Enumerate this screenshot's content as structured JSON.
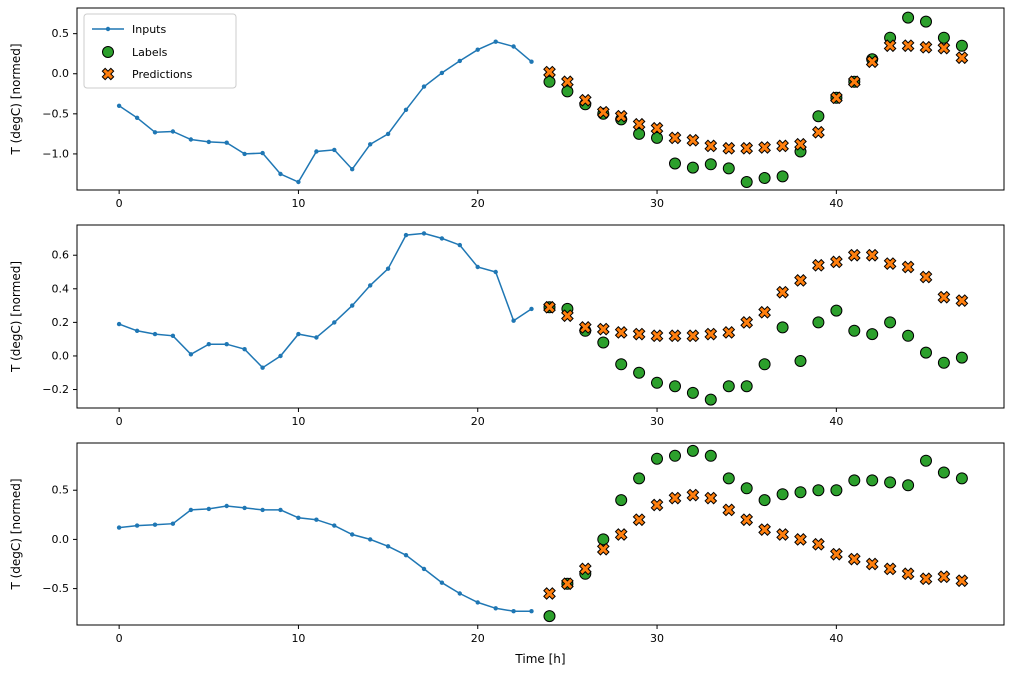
{
  "figure": {
    "background": "#ffffff"
  },
  "legend": {
    "position": "upper-left-subplot-1",
    "items": [
      {
        "key": "inputs",
        "label": "Inputs"
      },
      {
        "key": "labels",
        "label": "Labels"
      },
      {
        "key": "predictions",
        "label": "Predictions"
      }
    ]
  },
  "colors": {
    "inputs": "#1f77b4",
    "labels": "#2ca02c",
    "predictions": "#ff7f0e",
    "marker_edge": "#000000",
    "axis": "#000000",
    "legend_border": "#cccccc"
  },
  "chart_data": [
    {
      "type": "line",
      "title": "",
      "xlabel": "",
      "ylabel": "T (degC) [normed]",
      "xlim": [
        -2.35,
        49.35
      ],
      "ylim": [
        -1.45,
        0.82
      ],
      "grid": false,
      "xticks": [
        0,
        10,
        20,
        30,
        40
      ],
      "xtick_labels": [
        "0",
        "10",
        "20",
        "30",
        "40"
      ],
      "yticks": [
        0.5,
        0.0,
        -0.5,
        -1.0
      ],
      "ytick_labels": [
        "0.5",
        "0.0",
        "−0.5",
        "−1.0"
      ],
      "series": [
        {
          "name": "Inputs",
          "key": "inputs",
          "style": "line-marker",
          "x": [
            0,
            1,
            2,
            3,
            4,
            5,
            6,
            7,
            8,
            9,
            10,
            11,
            12,
            13,
            14,
            15,
            16,
            17,
            18,
            19,
            20,
            21,
            22,
            23
          ],
          "y": [
            -0.4,
            -0.55,
            -0.73,
            -0.72,
            -0.82,
            -0.85,
            -0.86,
            -1.0,
            -0.99,
            -1.25,
            -1.35,
            -0.97,
            -0.95,
            -1.19,
            -0.88,
            -0.75,
            -0.45,
            -0.16,
            0.01,
            0.16,
            0.3,
            0.4,
            0.34,
            0.15
          ]
        },
        {
          "name": "Labels",
          "key": "labels",
          "style": "scatter-circle",
          "x": [
            24,
            25,
            26,
            27,
            28,
            29,
            30,
            31,
            32,
            33,
            34,
            35,
            36,
            37,
            38,
            39,
            40,
            41,
            42,
            43,
            44,
            45,
            46,
            47
          ],
          "y": [
            -0.1,
            -0.22,
            -0.38,
            -0.5,
            -0.57,
            -0.75,
            -0.8,
            -1.12,
            -1.17,
            -1.13,
            -1.18,
            -1.35,
            -1.3,
            -1.28,
            -0.97,
            -0.53,
            -0.3,
            -0.1,
            0.18,
            0.45,
            0.7,
            0.65,
            0.45,
            0.35
          ]
        },
        {
          "name": "Predictions",
          "key": "predictions",
          "style": "scatter-x",
          "x": [
            24,
            25,
            26,
            27,
            28,
            29,
            30,
            31,
            32,
            33,
            34,
            35,
            36,
            37,
            38,
            39,
            40,
            41,
            42,
            43,
            44,
            45,
            46,
            47
          ],
          "y": [
            0.02,
            -0.1,
            -0.33,
            -0.48,
            -0.53,
            -0.63,
            -0.68,
            -0.8,
            -0.83,
            -0.9,
            -0.93,
            -0.93,
            -0.92,
            -0.9,
            -0.88,
            -0.73,
            -0.3,
            -0.1,
            0.15,
            0.35,
            0.35,
            0.33,
            0.32,
            0.2
          ]
        }
      ]
    },
    {
      "type": "line",
      "title": "",
      "xlabel": "",
      "ylabel": "T (degC) [normed]",
      "xlim": [
        -2.35,
        49.35
      ],
      "ylim": [
        -0.31,
        0.78
      ],
      "grid": false,
      "xticks": [
        0,
        10,
        20,
        30,
        40
      ],
      "xtick_labels": [
        "0",
        "10",
        "20",
        "30",
        "40"
      ],
      "yticks": [
        0.6,
        0.4,
        0.2,
        0.0,
        -0.2
      ],
      "ytick_labels": [
        "0.6",
        "0.4",
        "0.2",
        "0.0",
        "−0.2"
      ],
      "series": [
        {
          "name": "Inputs",
          "key": "inputs",
          "style": "line-marker",
          "x": [
            0,
            1,
            2,
            3,
            4,
            5,
            6,
            7,
            8,
            9,
            10,
            11,
            12,
            13,
            14,
            15,
            16,
            17,
            18,
            19,
            20,
            21,
            22,
            23
          ],
          "y": [
            0.19,
            0.15,
            0.13,
            0.12,
            0.01,
            0.07,
            0.07,
            0.04,
            -0.07,
            0.0,
            0.13,
            0.11,
            0.2,
            0.3,
            0.42,
            0.52,
            0.72,
            0.73,
            0.7,
            0.66,
            0.53,
            0.5,
            0.21,
            0.28
          ]
        },
        {
          "name": "Labels",
          "key": "labels",
          "style": "scatter-circle",
          "x": [
            24,
            25,
            26,
            27,
            28,
            29,
            30,
            31,
            32,
            33,
            34,
            35,
            36,
            37,
            38,
            39,
            40,
            41,
            42,
            43,
            44,
            45,
            46,
            47
          ],
          "y": [
            0.29,
            0.28,
            0.15,
            0.08,
            -0.05,
            -0.1,
            -0.16,
            -0.18,
            -0.22,
            -0.26,
            -0.18,
            -0.18,
            -0.05,
            0.17,
            -0.03,
            0.2,
            0.27,
            0.15,
            0.13,
            0.2,
            0.12,
            0.02,
            -0.04,
            -0.01
          ]
        },
        {
          "name": "Predictions",
          "key": "predictions",
          "style": "scatter-x",
          "x": [
            24,
            25,
            26,
            27,
            28,
            29,
            30,
            31,
            32,
            33,
            34,
            35,
            36,
            37,
            38,
            39,
            40,
            41,
            42,
            43,
            44,
            45,
            46,
            47
          ],
          "y": [
            0.29,
            0.24,
            0.17,
            0.16,
            0.14,
            0.13,
            0.12,
            0.12,
            0.12,
            0.13,
            0.14,
            0.2,
            0.26,
            0.38,
            0.45,
            0.54,
            0.56,
            0.6,
            0.6,
            0.55,
            0.53,
            0.47,
            0.35,
            0.33
          ]
        }
      ]
    },
    {
      "type": "line",
      "title": "",
      "xlabel": "Time [h]",
      "ylabel": "T (degC) [normed]",
      "xlim": [
        -2.35,
        49.35
      ],
      "ylim": [
        -0.87,
        0.98
      ],
      "grid": false,
      "xticks": [
        0,
        10,
        20,
        30,
        40
      ],
      "xtick_labels": [
        "0",
        "10",
        "20",
        "30",
        "40"
      ],
      "yticks": [
        0.5,
        0.0,
        -0.5
      ],
      "ytick_labels": [
        "0.5",
        "0.0",
        "−0.5"
      ],
      "series": [
        {
          "name": "Inputs",
          "key": "inputs",
          "style": "line-marker",
          "x": [
            0,
            1,
            2,
            3,
            4,
            5,
            6,
            7,
            8,
            9,
            10,
            11,
            12,
            13,
            14,
            15,
            16,
            17,
            18,
            19,
            20,
            21,
            22,
            23
          ],
          "y": [
            0.12,
            0.14,
            0.15,
            0.16,
            0.3,
            0.31,
            0.34,
            0.32,
            0.3,
            0.3,
            0.22,
            0.2,
            0.14,
            0.05,
            0.0,
            -0.07,
            -0.16,
            -0.3,
            -0.44,
            -0.55,
            -0.64,
            -0.7,
            -0.73,
            -0.73
          ]
        },
        {
          "name": "Labels",
          "key": "labels",
          "style": "scatter-circle",
          "x": [
            24,
            25,
            26,
            27,
            28,
            29,
            30,
            31,
            32,
            33,
            34,
            35,
            36,
            37,
            38,
            39,
            40,
            41,
            42,
            43,
            44,
            45,
            46,
            47
          ],
          "y": [
            -0.78,
            -0.45,
            -0.35,
            0.0,
            0.4,
            0.62,
            0.82,
            0.85,
            0.9,
            0.85,
            0.62,
            0.52,
            0.4,
            0.46,
            0.48,
            0.5,
            0.5,
            0.6,
            0.6,
            0.58,
            0.55,
            0.8,
            0.68,
            0.62
          ]
        },
        {
          "name": "Predictions",
          "key": "predictions",
          "style": "scatter-x",
          "x": [
            24,
            25,
            26,
            27,
            28,
            29,
            30,
            31,
            32,
            33,
            34,
            35,
            36,
            37,
            38,
            39,
            40,
            41,
            42,
            43,
            44,
            45,
            46,
            47
          ],
          "y": [
            -0.55,
            -0.45,
            -0.3,
            -0.1,
            0.05,
            0.2,
            0.35,
            0.42,
            0.45,
            0.42,
            0.3,
            0.2,
            0.1,
            0.05,
            0.0,
            -0.05,
            -0.15,
            -0.2,
            -0.25,
            -0.3,
            -0.35,
            -0.4,
            -0.38,
            -0.42
          ]
        }
      ]
    }
  ]
}
